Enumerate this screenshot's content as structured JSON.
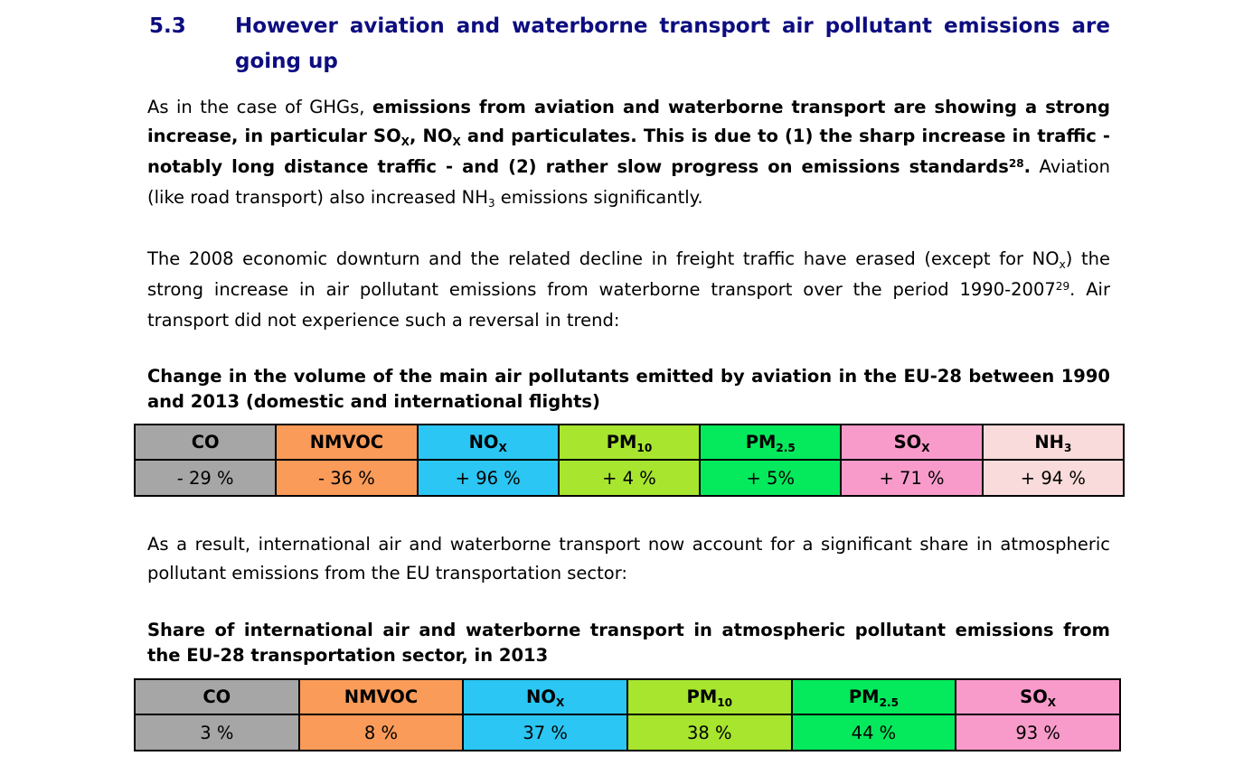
{
  "heading": {
    "number": "5.3",
    "title": "However aviation and waterborne transport air pollutant emissions are going up",
    "color": "#0D0D80"
  },
  "paragraphs": {
    "p1": {
      "segments": [
        {
          "t": "As in the case of GHGs, "
        },
        {
          "t": "emissions from aviation and waterborne transport are showing a strong increase, in particular SO",
          "b": true
        },
        {
          "t": "X",
          "b": true,
          "sub": true
        },
        {
          "t": ", NO",
          "b": true
        },
        {
          "t": "X",
          "b": true,
          "sub": true
        },
        {
          "t": " and particulates. This is due to (1) the sharp increase in traffic - notably long distance traffic - and (2) rather slow progress on emissions standards",
          "b": true
        },
        {
          "t": "28",
          "b": true,
          "sup": true
        },
        {
          "t": ".",
          "b": true
        },
        {
          "t": " Aviation (like road transport) also increased NH"
        },
        {
          "t": "3",
          "sub": true
        },
        {
          "t": " emissions significantly."
        }
      ]
    },
    "p2": {
      "segments": [
        {
          "t": "The 2008 economic downturn and the related decline in freight traffic have erased (except for NO"
        },
        {
          "t": "x",
          "sub": true
        },
        {
          "t": ") the strong increase in air pollutant emissions from waterborne transport over the period 1990-2007"
        },
        {
          "t": "29",
          "sup": true
        },
        {
          "t": ". Air transport did not experience such a reversal in trend:"
        }
      ]
    },
    "p3": {
      "segments": [
        {
          "t": "As a result, international air and waterborne transport now account for a significant share in atmospheric pollutant emissions from the EU transportation sector:"
        }
      ]
    }
  },
  "table1": {
    "caption": "Change in the volume of the main air pollutants emitted by aviation in the EU-28 between 1990 and 2013 (domestic and international flights)",
    "columns": [
      {
        "header": [
          {
            "t": "CO"
          }
        ],
        "value": "- 29 %",
        "color": "#A6A6A6"
      },
      {
        "header": [
          {
            "t": "NMVOC"
          }
        ],
        "value": "- 36 %",
        "color": "#FA9B59"
      },
      {
        "header": [
          {
            "t": "NO"
          },
          {
            "t": "X",
            "sub": true
          }
        ],
        "value": "+ 96 %",
        "color": "#2BC6F3"
      },
      {
        "header": [
          {
            "t": "PM"
          },
          {
            "t": "10",
            "sub": true
          }
        ],
        "value": "+ 4 %",
        "color": "#A7E52F"
      },
      {
        "header": [
          {
            "t": "PM"
          },
          {
            "t": "2.5",
            "sub": true
          }
        ],
        "value": "+ 5%",
        "color": "#05E95C"
      },
      {
        "header": [
          {
            "t": "SO"
          },
          {
            "t": "X",
            "sub": true
          }
        ],
        "value": "+ 71 %",
        "color": "#F99BCA"
      },
      {
        "header": [
          {
            "t": "NH"
          },
          {
            "t": "3",
            "sub": true
          }
        ],
        "value": "+ 94 %",
        "color": "#F8DBDA"
      }
    ]
  },
  "table2": {
    "caption": "Share of international air and waterborne transport in atmospheric pollutant emissions from the EU-28 transportation sector, in 2013",
    "columns": [
      {
        "header": [
          {
            "t": "CO"
          }
        ],
        "value": "3 %",
        "color": "#A6A6A6"
      },
      {
        "header": [
          {
            "t": "NMVOC"
          }
        ],
        "value": "8 %",
        "color": "#FA9B59"
      },
      {
        "header": [
          {
            "t": "NO"
          },
          {
            "t": "X",
            "sub": true
          }
        ],
        "value": "37 %",
        "color": "#2BC6F3"
      },
      {
        "header": [
          {
            "t": "PM"
          },
          {
            "t": "10",
            "sub": true
          }
        ],
        "value": "38 %",
        "color": "#A7E52F"
      },
      {
        "header": [
          {
            "t": "PM"
          },
          {
            "t": "2.5",
            "sub": true
          }
        ],
        "value": "44 %",
        "color": "#05E95C"
      },
      {
        "header": [
          {
            "t": "SO"
          },
          {
            "t": "X",
            "sub": true
          }
        ],
        "value": "93 %",
        "color": "#F99BCA"
      }
    ]
  },
  "chart_data": {
    "type": "table",
    "tables": [
      {
        "title": "Change in the volume of the main air pollutants emitted by aviation in the EU-28 between 1990 and 2013 (domestic and international flights)",
        "categories": [
          "CO",
          "NMVOC",
          "NOX",
          "PM10",
          "PM2.5",
          "SOX",
          "NH3"
        ],
        "values_percent": [
          -29,
          -36,
          96,
          4,
          5,
          71,
          94
        ]
      },
      {
        "title": "Share of international air and waterborne transport in atmospheric pollutant emissions from the EU-28 transportation sector, in 2013",
        "categories": [
          "CO",
          "NMVOC",
          "NOX",
          "PM10",
          "PM2.5",
          "SOX"
        ],
        "values_percent": [
          3,
          8,
          37,
          38,
          44,
          93
        ]
      }
    ]
  }
}
